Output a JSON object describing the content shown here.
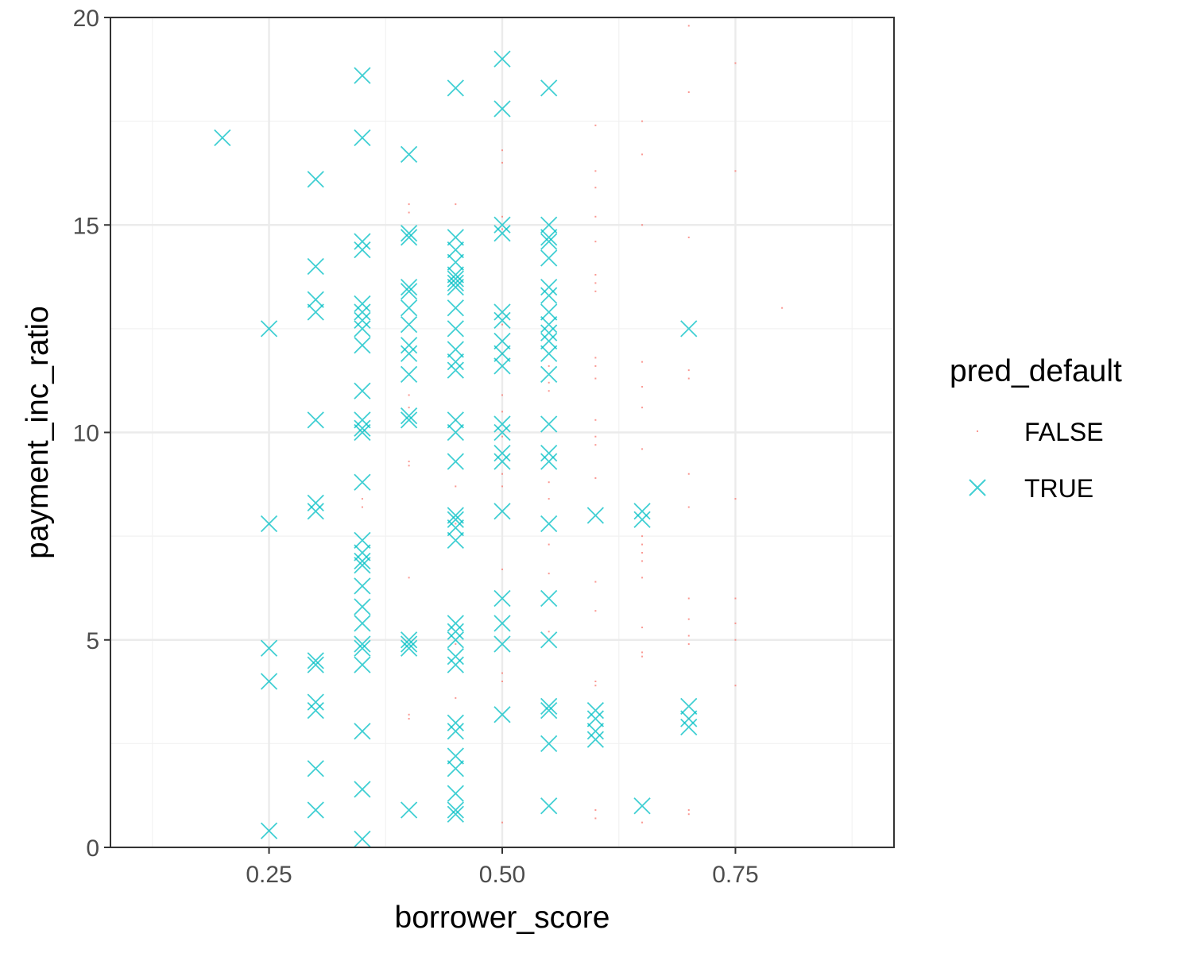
{
  "colors": {
    "false_series": "#F8766D",
    "true_series": "#00BFC4",
    "grid_major": "#EBEBEB",
    "grid_minor": "#F2F2F2",
    "panel_border": "#333333",
    "tick_text": "#4D4D4D"
  },
  "legend": {
    "title": "pred_default",
    "placement": "right",
    "items": [
      {
        "label": "FALSE",
        "shape": "tiny-dot"
      },
      {
        "label": "TRUE",
        "shape": "cross"
      }
    ]
  },
  "chart_data": {
    "type": "scatter",
    "title": "",
    "xlabel": "borrower_score",
    "ylabel": "payment_inc_ratio",
    "xlim": [
      0.08,
      0.92
    ],
    "ylim": [
      0,
      20
    ],
    "x_ticks": [
      0.25,
      0.5,
      0.75
    ],
    "x_tick_labels": [
      "0.25",
      "0.50",
      "0.75"
    ],
    "y_ticks": [
      0,
      5,
      10,
      15,
      20
    ],
    "y_tick_labels": [
      "0",
      "5",
      "10",
      "15",
      "20"
    ],
    "grid": true,
    "series": [
      {
        "name": "FALSE",
        "points": [
          [
            0.35,
            8.2
          ],
          [
            0.35,
            8.4
          ],
          [
            0.4,
            15.5
          ],
          [
            0.4,
            15.3
          ],
          [
            0.4,
            10.9
          ],
          [
            0.4,
            10.6
          ],
          [
            0.4,
            9.3
          ],
          [
            0.4,
            9.2
          ],
          [
            0.4,
            6.5
          ],
          [
            0.4,
            3.2
          ],
          [
            0.4,
            3.1
          ],
          [
            0.45,
            15.5
          ],
          [
            0.45,
            10.3
          ],
          [
            0.45,
            8.7
          ],
          [
            0.45,
            7.8
          ],
          [
            0.45,
            4.9
          ],
          [
            0.45,
            3.6
          ],
          [
            0.5,
            16.8
          ],
          [
            0.5,
            16.5
          ],
          [
            0.5,
            15.2
          ],
          [
            0.5,
            14.9
          ],
          [
            0.5,
            12.6
          ],
          [
            0.5,
            11.9
          ],
          [
            0.5,
            10.9
          ],
          [
            0.5,
            10.5
          ],
          [
            0.5,
            9.9
          ],
          [
            0.5,
            9.0
          ],
          [
            0.5,
            8.7
          ],
          [
            0.5,
            6.7
          ],
          [
            0.5,
            4.2
          ],
          [
            0.5,
            4.0
          ],
          [
            0.5,
            0.6
          ],
          [
            0.55,
            11.6
          ],
          [
            0.55,
            11.2
          ],
          [
            0.55,
            11.0
          ],
          [
            0.55,
            8.8
          ],
          [
            0.55,
            8.4
          ],
          [
            0.55,
            7.3
          ],
          [
            0.55,
            6.6
          ],
          [
            0.55,
            5.2
          ],
          [
            0.6,
            17.4
          ],
          [
            0.6,
            16.3
          ],
          [
            0.6,
            15.9
          ],
          [
            0.6,
            15.2
          ],
          [
            0.6,
            14.6
          ],
          [
            0.6,
            13.8
          ],
          [
            0.6,
            13.6
          ],
          [
            0.6,
            13.4
          ],
          [
            0.6,
            11.8
          ],
          [
            0.6,
            11.6
          ],
          [
            0.6,
            11.3
          ],
          [
            0.6,
            10.3
          ],
          [
            0.6,
            9.9
          ],
          [
            0.6,
            9.7
          ],
          [
            0.6,
            8.9
          ],
          [
            0.6,
            6.4
          ],
          [
            0.6,
            5.7
          ],
          [
            0.6,
            4.0
          ],
          [
            0.6,
            3.9
          ],
          [
            0.6,
            0.9
          ],
          [
            0.6,
            0.7
          ],
          [
            0.65,
            17.5
          ],
          [
            0.65,
            16.7
          ],
          [
            0.65,
            15.0
          ],
          [
            0.65,
            11.7
          ],
          [
            0.65,
            11.1
          ],
          [
            0.65,
            10.6
          ],
          [
            0.65,
            9.6
          ],
          [
            0.65,
            7.5
          ],
          [
            0.65,
            7.3
          ],
          [
            0.65,
            7.1
          ],
          [
            0.65,
            6.9
          ],
          [
            0.65,
            6.5
          ],
          [
            0.65,
            5.3
          ],
          [
            0.65,
            4.7
          ],
          [
            0.65,
            4.6
          ],
          [
            0.65,
            0.6
          ],
          [
            0.7,
            19.8
          ],
          [
            0.7,
            18.2
          ],
          [
            0.7,
            14.7
          ],
          [
            0.7,
            11.5
          ],
          [
            0.7,
            11.3
          ],
          [
            0.7,
            9.0
          ],
          [
            0.7,
            8.2
          ],
          [
            0.7,
            6.0
          ],
          [
            0.7,
            5.5
          ],
          [
            0.7,
            5.1
          ],
          [
            0.7,
            4.9
          ],
          [
            0.7,
            3.1
          ],
          [
            0.7,
            0.9
          ],
          [
            0.7,
            0.8
          ],
          [
            0.75,
            18.9
          ],
          [
            0.75,
            16.3
          ],
          [
            0.75,
            8.4
          ],
          [
            0.75,
            6.0
          ],
          [
            0.75,
            5.4
          ],
          [
            0.75,
            5.0
          ],
          [
            0.75,
            3.9
          ],
          [
            0.8,
            13.0
          ]
        ]
      },
      {
        "name": "TRUE",
        "points": [
          [
            0.2,
            17.1
          ],
          [
            0.25,
            12.5
          ],
          [
            0.25,
            7.8
          ],
          [
            0.25,
            4.8
          ],
          [
            0.25,
            4.0
          ],
          [
            0.25,
            0.4
          ],
          [
            0.3,
            16.1
          ],
          [
            0.3,
            14.0
          ],
          [
            0.3,
            13.2
          ],
          [
            0.3,
            12.9
          ],
          [
            0.3,
            10.3
          ],
          [
            0.3,
            8.3
          ],
          [
            0.3,
            8.1
          ],
          [
            0.3,
            4.5
          ],
          [
            0.3,
            4.4
          ],
          [
            0.3,
            3.5
          ],
          [
            0.3,
            3.3
          ],
          [
            0.3,
            1.9
          ],
          [
            0.3,
            0.9
          ],
          [
            0.35,
            18.6
          ],
          [
            0.35,
            17.1
          ],
          [
            0.35,
            14.6
          ],
          [
            0.35,
            14.4
          ],
          [
            0.35,
            13.1
          ],
          [
            0.35,
            12.9
          ],
          [
            0.35,
            12.7
          ],
          [
            0.35,
            12.5
          ],
          [
            0.35,
            12.1
          ],
          [
            0.35,
            11.0
          ],
          [
            0.35,
            10.3
          ],
          [
            0.35,
            10.1
          ],
          [
            0.35,
            10.0
          ],
          [
            0.35,
            8.8
          ],
          [
            0.35,
            7.4
          ],
          [
            0.35,
            7.1
          ],
          [
            0.35,
            6.9
          ],
          [
            0.35,
            6.8
          ],
          [
            0.35,
            6.3
          ],
          [
            0.35,
            5.8
          ],
          [
            0.35,
            5.4
          ],
          [
            0.35,
            4.9
          ],
          [
            0.35,
            4.8
          ],
          [
            0.35,
            4.4
          ],
          [
            0.35,
            2.8
          ],
          [
            0.35,
            1.4
          ],
          [
            0.35,
            0.2
          ],
          [
            0.4,
            16.7
          ],
          [
            0.4,
            14.8
          ],
          [
            0.4,
            14.7
          ],
          [
            0.4,
            13.5
          ],
          [
            0.4,
            13.4
          ],
          [
            0.4,
            13.0
          ],
          [
            0.4,
            12.6
          ],
          [
            0.4,
            12.1
          ],
          [
            0.4,
            11.9
          ],
          [
            0.4,
            11.4
          ],
          [
            0.4,
            10.4
          ],
          [
            0.4,
            10.3
          ],
          [
            0.4,
            5.0
          ],
          [
            0.4,
            4.9
          ],
          [
            0.4,
            4.8
          ],
          [
            0.4,
            0.9
          ],
          [
            0.45,
            18.3
          ],
          [
            0.45,
            14.7
          ],
          [
            0.45,
            14.4
          ],
          [
            0.45,
            14.1
          ],
          [
            0.45,
            13.8
          ],
          [
            0.45,
            13.7
          ],
          [
            0.45,
            13.6
          ],
          [
            0.45,
            13.5
          ],
          [
            0.45,
            13.0
          ],
          [
            0.45,
            12.5
          ],
          [
            0.45,
            12.0
          ],
          [
            0.45,
            11.7
          ],
          [
            0.45,
            11.5
          ],
          [
            0.45,
            10.3
          ],
          [
            0.45,
            10.0
          ],
          [
            0.45,
            9.3
          ],
          [
            0.45,
            8.0
          ],
          [
            0.45,
            7.9
          ],
          [
            0.45,
            7.7
          ],
          [
            0.45,
            7.4
          ],
          [
            0.45,
            5.4
          ],
          [
            0.45,
            5.2
          ],
          [
            0.45,
            5.0
          ],
          [
            0.45,
            4.6
          ],
          [
            0.45,
            4.4
          ],
          [
            0.45,
            3.0
          ],
          [
            0.45,
            2.8
          ],
          [
            0.45,
            2.2
          ],
          [
            0.45,
            1.9
          ],
          [
            0.45,
            1.3
          ],
          [
            0.45,
            0.9
          ],
          [
            0.45,
            0.8
          ],
          [
            0.5,
            19.0
          ],
          [
            0.5,
            17.8
          ],
          [
            0.5,
            15.0
          ],
          [
            0.5,
            14.8
          ],
          [
            0.5,
            12.9
          ],
          [
            0.5,
            12.7
          ],
          [
            0.5,
            12.2
          ],
          [
            0.5,
            11.9
          ],
          [
            0.5,
            11.6
          ],
          [
            0.5,
            10.2
          ],
          [
            0.5,
            10.0
          ],
          [
            0.5,
            9.5
          ],
          [
            0.5,
            9.3
          ],
          [
            0.5,
            8.1
          ],
          [
            0.5,
            6.0
          ],
          [
            0.5,
            5.4
          ],
          [
            0.5,
            4.9
          ],
          [
            0.5,
            3.2
          ],
          [
            0.55,
            18.3
          ],
          [
            0.55,
            15.0
          ],
          [
            0.55,
            14.7
          ],
          [
            0.55,
            14.6
          ],
          [
            0.55,
            14.2
          ],
          [
            0.55,
            13.5
          ],
          [
            0.55,
            13.3
          ],
          [
            0.55,
            12.9
          ],
          [
            0.55,
            12.6
          ],
          [
            0.55,
            12.4
          ],
          [
            0.55,
            12.2
          ],
          [
            0.55,
            11.9
          ],
          [
            0.55,
            11.4
          ],
          [
            0.55,
            10.2
          ],
          [
            0.55,
            9.5
          ],
          [
            0.55,
            9.3
          ],
          [
            0.55,
            7.8
          ],
          [
            0.55,
            6.0
          ],
          [
            0.55,
            5.0
          ],
          [
            0.55,
            3.4
          ],
          [
            0.55,
            3.3
          ],
          [
            0.55,
            2.5
          ],
          [
            0.55,
            1.0
          ],
          [
            0.6,
            8.0
          ],
          [
            0.6,
            3.3
          ],
          [
            0.6,
            3.1
          ],
          [
            0.6,
            2.8
          ],
          [
            0.6,
            2.6
          ],
          [
            0.65,
            8.1
          ],
          [
            0.65,
            7.9
          ],
          [
            0.65,
            1.0
          ],
          [
            0.7,
            12.5
          ],
          [
            0.7,
            3.4
          ],
          [
            0.7,
            3.1
          ],
          [
            0.7,
            2.9
          ]
        ]
      }
    ]
  }
}
